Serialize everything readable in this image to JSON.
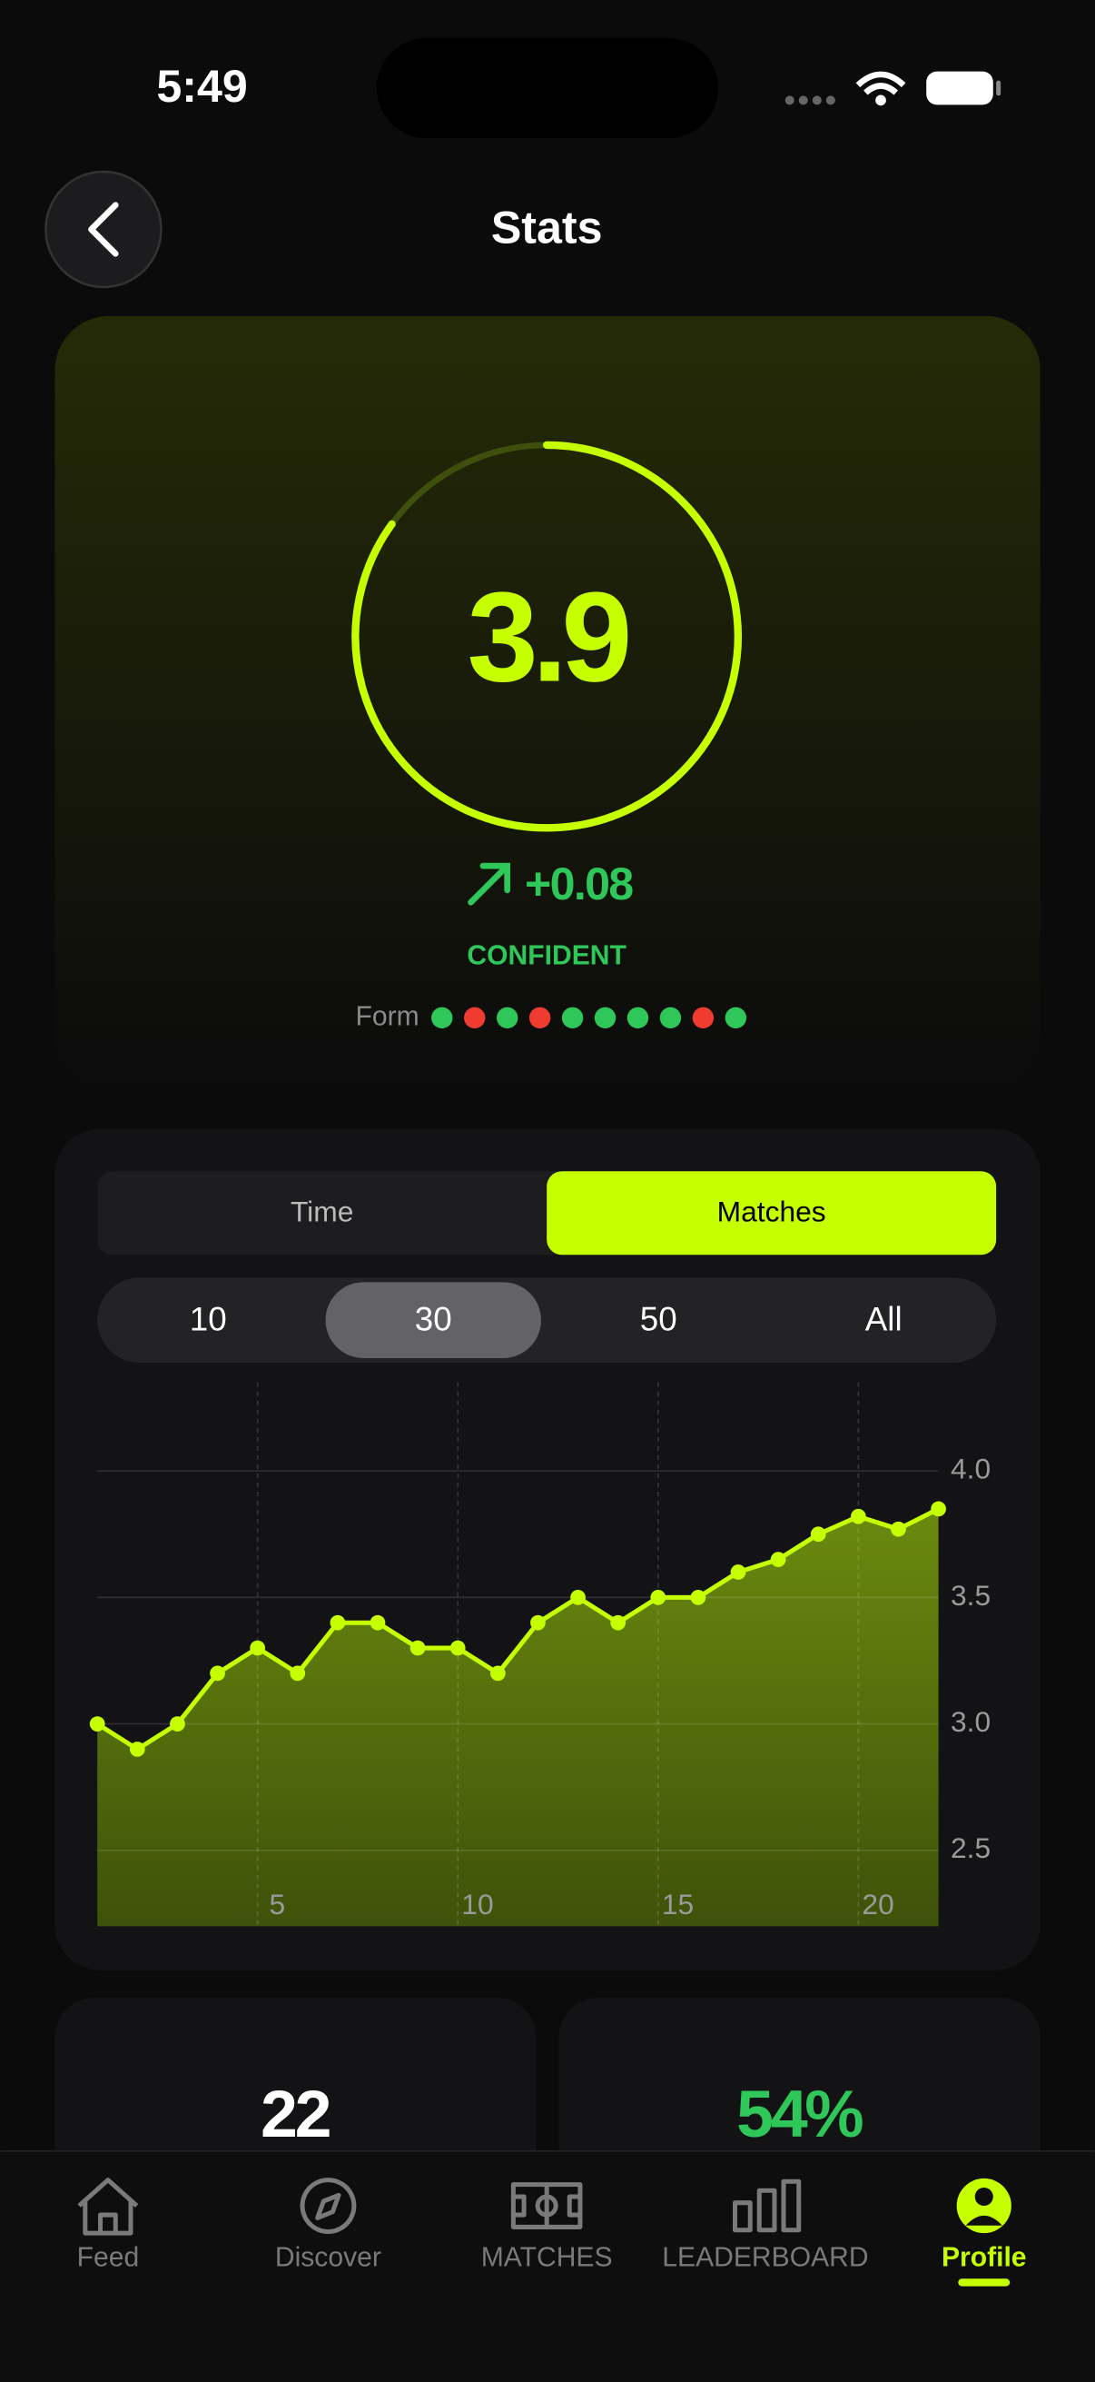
{
  "status": {
    "time": "5:49"
  },
  "header": {
    "title": "Stats"
  },
  "rating": {
    "value": "3.9",
    "change": "+0.08",
    "label": "CONFIDENT"
  },
  "form": {
    "label": "Form",
    "results": [
      "#2fc75a",
      "#ef3b30",
      "#2fc75a",
      "#ef3b30",
      "#2fc75a",
      "#2fc75a",
      "#2fc75a",
      "#2fc75a",
      "#ef3b30",
      "#2fc75a"
    ]
  },
  "tabs": {
    "options": [
      {
        "label": "Time",
        "active": false
      },
      {
        "label": "Matches",
        "active": true
      }
    ]
  },
  "range": {
    "options": [
      {
        "label": "10",
        "active": false
      },
      {
        "label": "30",
        "active": true
      },
      {
        "label": "50",
        "active": false
      },
      {
        "label": "All",
        "active": false
      }
    ]
  },
  "chart_data": {
    "type": "line",
    "color": "#c6ff00",
    "x": [
      1,
      2,
      3,
      4,
      5,
      6,
      7,
      8,
      9,
      10,
      11,
      12,
      13,
      14,
      15,
      16,
      17,
      18,
      19,
      20,
      21,
      22
    ],
    "values": [
      3.0,
      2.9,
      3.0,
      3.2,
      3.3,
      3.2,
      3.4,
      3.4,
      3.3,
      3.3,
      3.2,
      3.4,
      3.5,
      3.4,
      3.5,
      3.5,
      3.6,
      3.65,
      3.75,
      3.82,
      3.77,
      3.85
    ],
    "xlim": [
      1,
      22
    ],
    "ylim": [
      2.2,
      4.35
    ],
    "xticks": [
      5,
      10,
      15,
      20
    ],
    "yticks": [
      2.5,
      {
        "value": 3,
        "label": "3.0"
      },
      3.5,
      {
        "value": 4,
        "label": "4.0"
      }
    ],
    "grid": true
  },
  "cards": [
    {
      "value": "22",
      "color": "#ffffff"
    },
    {
      "value": "54%",
      "color": "#2fc75a"
    }
  ],
  "nav": {
    "items": [
      {
        "label": "Feed",
        "active": false
      },
      {
        "label": "Discover",
        "active": false
      },
      {
        "label": "MATCHES",
        "active": false
      },
      {
        "label": "LEADERBOARD",
        "active": false
      },
      {
        "label": "Profile",
        "active": true
      }
    ]
  }
}
